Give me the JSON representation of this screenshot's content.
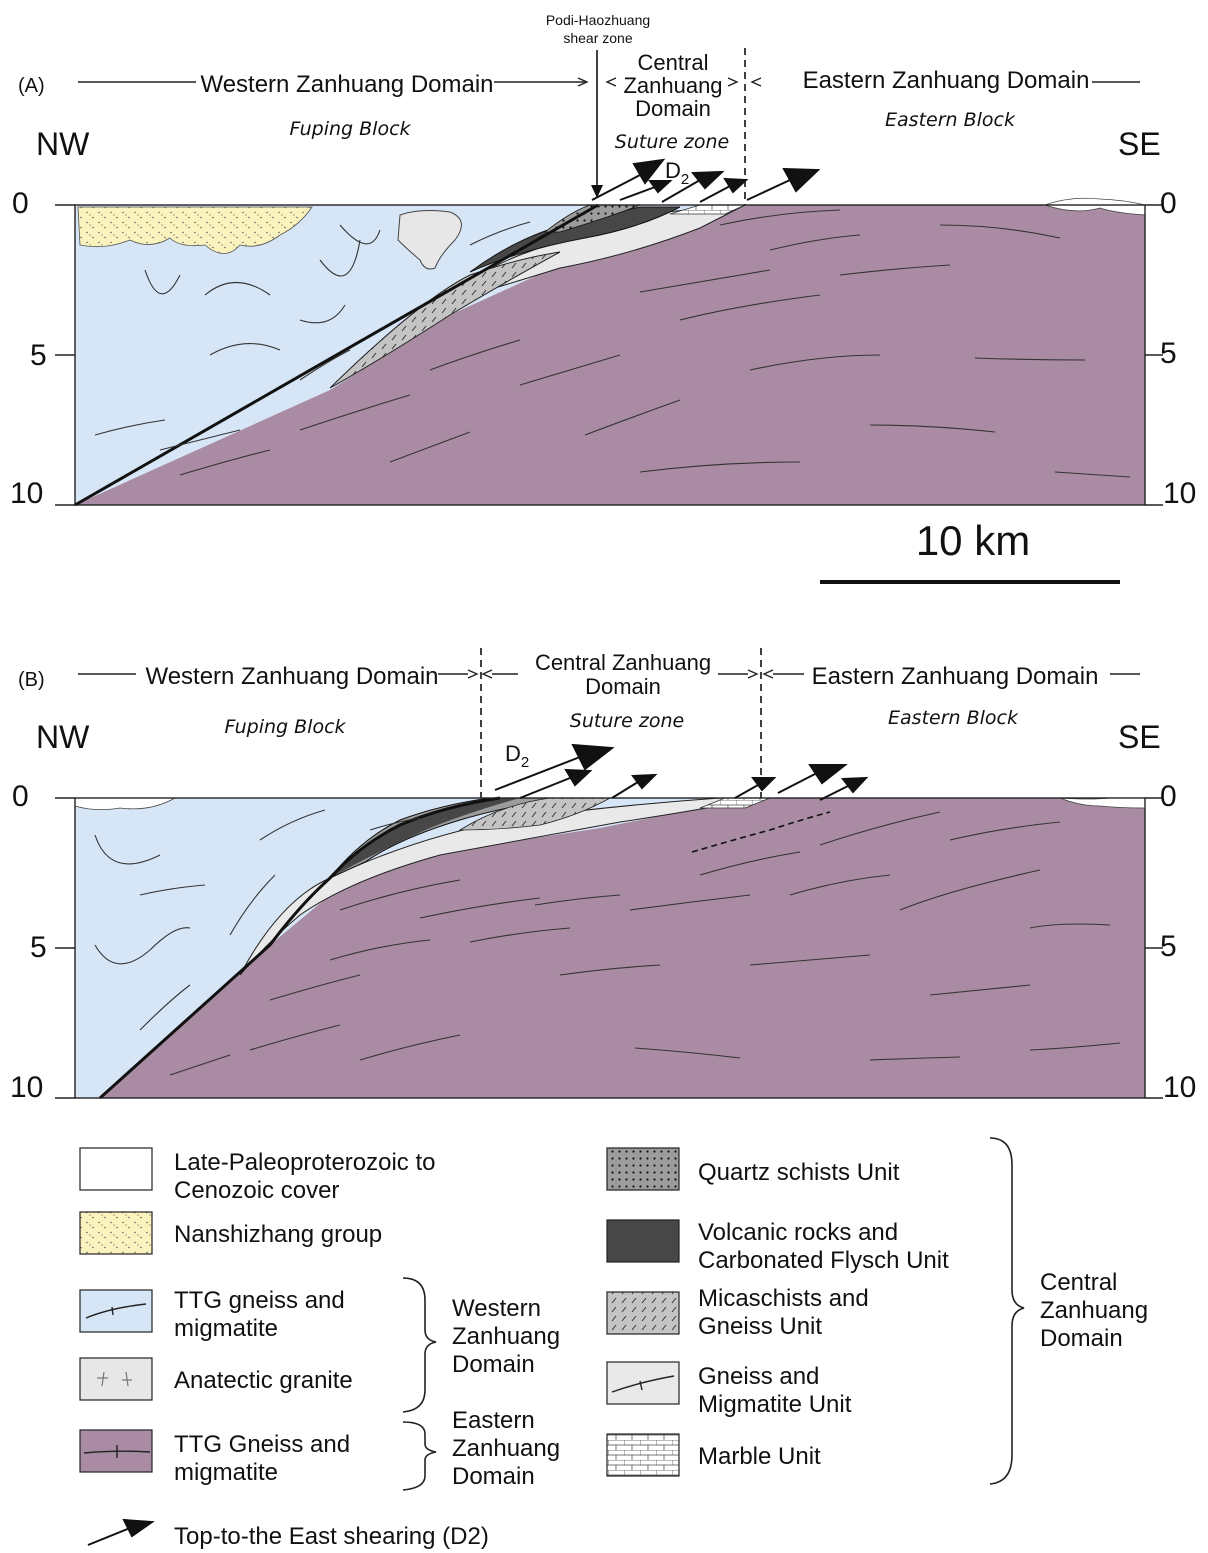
{
  "panel_a": {
    "label": "(A)",
    "shear_zone_label": [
      "Podi-Haozhuang",
      "shear zone"
    ],
    "western_domain": "Western Zanhuang Domain",
    "central_domain": [
      "Central",
      "Zanhuang",
      "Domain"
    ],
    "eastern_domain": "Eastern Zanhuang Domain",
    "fuping_block": "Fuping Block",
    "suture_zone": "Suture zone",
    "eastern_block": "Eastern Block",
    "nw": "NW",
    "se": "SE",
    "d2_label": "D",
    "d2_sub": "2",
    "depth_ticks": [
      "0",
      "5",
      "10"
    ],
    "scale_bar": "10 km"
  },
  "panel_b": {
    "label": "(B)",
    "western_domain": "Western Zanhuang Domain",
    "central_domain": [
      "Central Zanhuang",
      "Domain"
    ],
    "eastern_domain": "Eastern Zanhuang Domain",
    "fuping_block": "Fuping Block",
    "suture_zone": "Suture zone",
    "eastern_block": "Eastern Block",
    "nw": "NW",
    "se": "SE",
    "d2_label": "D",
    "d2_sub": "2",
    "depth_ticks": [
      "0",
      "5",
      "10"
    ]
  },
  "legend": {
    "cover": [
      "Late-Paleoproterozoic to",
      "Cenozoic cover"
    ],
    "nanshizhang": "Nanshizhang group",
    "ttg_west": [
      "TTG gneiss and",
      "migmatite"
    ],
    "anatectic": "Anatectic granite",
    "ttg_east": [
      "TTG Gneiss and",
      "migmatite"
    ],
    "western_group": [
      "Western",
      "Zanhuang",
      "Domain"
    ],
    "eastern_group": [
      "Eastern",
      "Zanhuang",
      "Domain"
    ],
    "quartz": "Quartz schists Unit",
    "volcanic": [
      "Volcanic rocks and",
      "Carbonated Flysch Unit"
    ],
    "micaschists": [
      "Micaschists and",
      "Gneiss Unit"
    ],
    "gneiss_migmatite": [
      "Gneiss and",
      "Migmatite Unit"
    ],
    "marble": "Marble Unit",
    "central_group": [
      "Central",
      "Zanhuang",
      "Domain"
    ],
    "shearing": "Top-to-the East shearing (D2)"
  },
  "colors": {
    "ttg_west": "#d7e6f6",
    "ttg_east": "#a98ca3",
    "nanshizhang": "#fbf3bd",
    "volcanic": "#474747",
    "quartz": "#9c9c9c",
    "micaschists": "#c2c2c2",
    "gneiss_unit": "#e9e9e9",
    "anatectic": "#e7e7e7"
  }
}
